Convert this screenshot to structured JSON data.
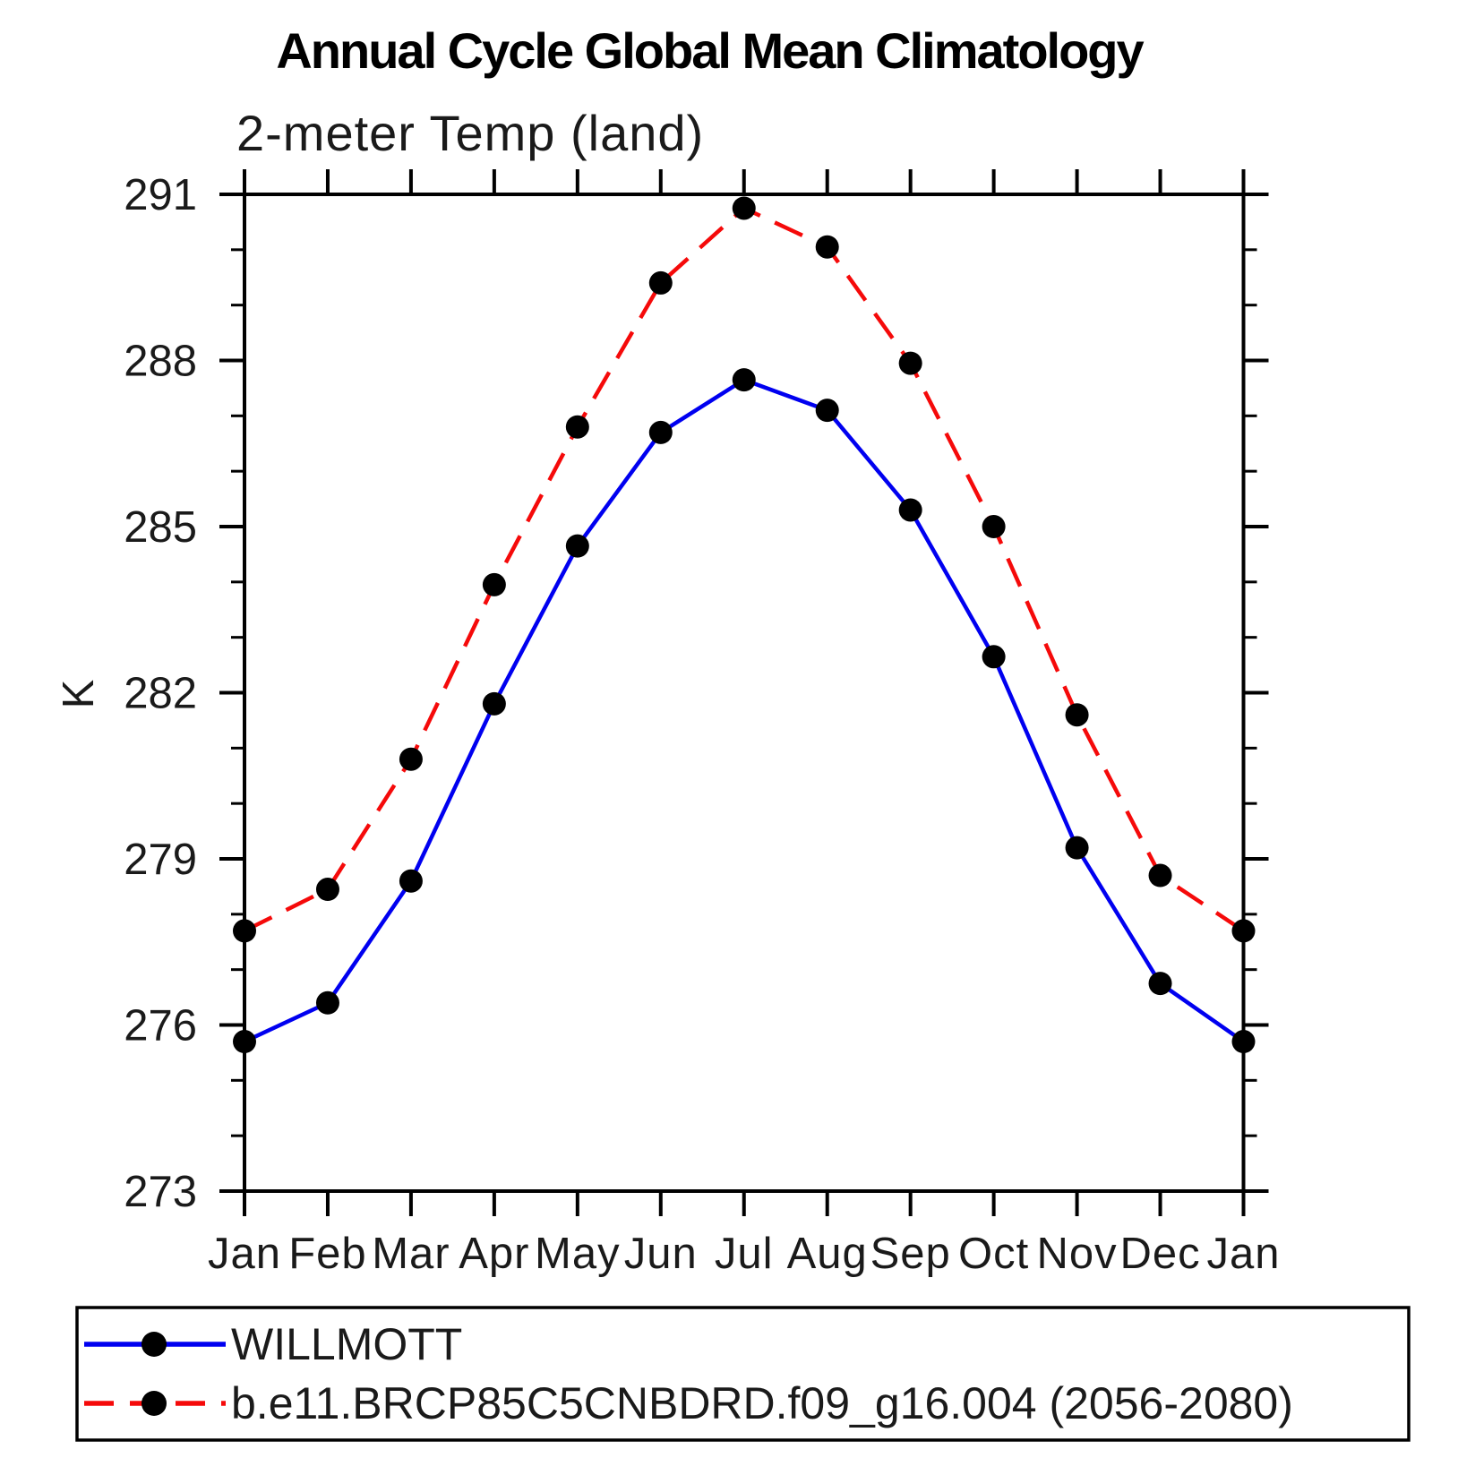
{
  "header": {
    "title": "Annual Cycle Global Mean Climatology",
    "subtitle": "2-meter Temp (land)"
  },
  "y_axis": {
    "label": "K",
    "tick_labels": [
      "291",
      "288",
      "285",
      "282",
      "279",
      "276",
      "273"
    ]
  },
  "x_axis": {
    "tick_labels": [
      "Jan",
      "Feb",
      "Mar",
      "Apr",
      "May",
      "Jun",
      "Jul",
      "Aug",
      "Sep",
      "Oct",
      "Nov",
      "Dec",
      "Jan"
    ]
  },
  "legend": {
    "items": [
      {
        "label": "WILLMOTT"
      },
      {
        "label": "b.e11.BRCP85C5CNBDRD.f09_g16.004 (2056-2080)"
      }
    ]
  },
  "chart_data": {
    "type": "line",
    "title": "Annual Cycle Global Mean Climatology",
    "subtitle": "2-meter Temp (land)",
    "xlabel": "",
    "ylabel": "K",
    "categories": [
      "Jan",
      "Feb",
      "Mar",
      "Apr",
      "May",
      "Jun",
      "Jul",
      "Aug",
      "Sep",
      "Oct",
      "Nov",
      "Dec",
      "Jan"
    ],
    "ylim": [
      273,
      291
    ],
    "yticks_major": [
      273,
      276,
      279,
      282,
      285,
      288,
      291
    ],
    "ytick_minor_step": 1,
    "grid": false,
    "legend_position": "bottom",
    "series": [
      {
        "name": "WILLMOTT",
        "color": "#0000f0",
        "line_style": "solid",
        "marker": "filled-circle",
        "marker_color": "#000000",
        "values": [
          275.7,
          276.4,
          278.6,
          281.8,
          284.65,
          286.7,
          287.65,
          287.1,
          285.3,
          282.65,
          279.2,
          276.75,
          275.7
        ]
      },
      {
        "name": "b.e11.BRCP85C5CNBDRD.f09_g16.004 (2056-2080)",
        "color": "#f50a0a",
        "line_style": "dashed",
        "marker": "filled-circle",
        "marker_color": "#000000",
        "values": [
          277.7,
          278.45,
          280.8,
          283.95,
          286.8,
          289.4,
          290.75,
          290.05,
          287.95,
          285.0,
          281.6,
          278.7,
          277.7
        ]
      }
    ]
  }
}
